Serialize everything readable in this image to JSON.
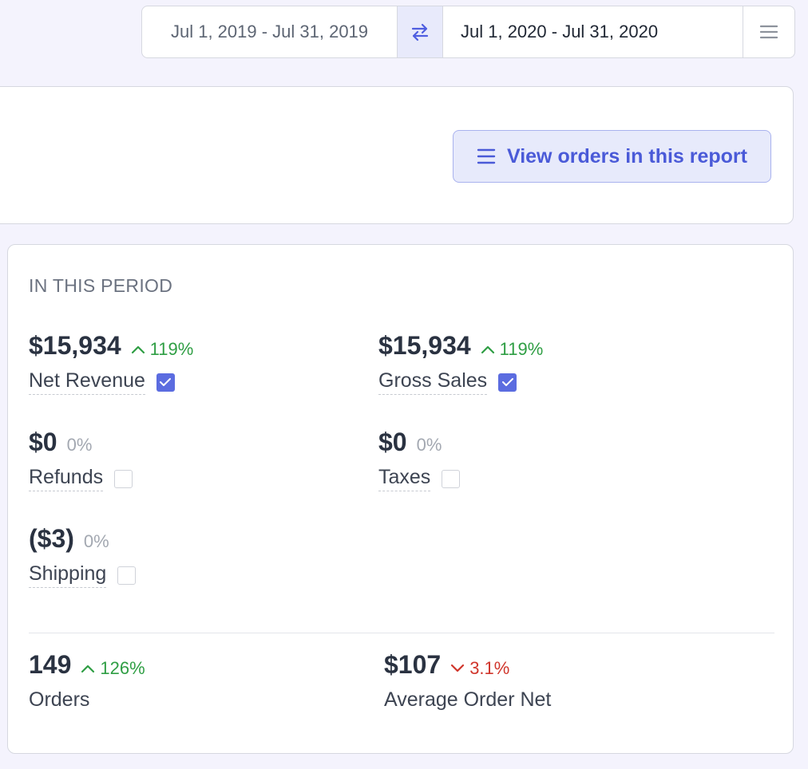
{
  "date_range": {
    "previous": "Jul 1, 2019 - Jul 31, 2019",
    "current": "Jul 1, 2020 - Jul 31, 2020"
  },
  "top_card": {
    "view_orders_label": "View orders in this report"
  },
  "stats": {
    "section_title": "IN THIS PERIOD",
    "net_revenue": {
      "value": "$15,934",
      "change": "119%",
      "label": "Net Revenue",
      "checked": true
    },
    "gross_sales": {
      "value": "$15,934",
      "change": "119%",
      "label": "Gross Sales",
      "checked": true
    },
    "refunds": {
      "value": "$0",
      "change": "0%",
      "label": "Refunds",
      "checked": false
    },
    "taxes": {
      "value": "$0",
      "change": "0%",
      "label": "Taxes",
      "checked": false
    },
    "shipping": {
      "value": "($3)",
      "change": "0%",
      "label": "Shipping",
      "checked": false
    },
    "orders": {
      "value": "149",
      "change": "126%",
      "label": "Orders"
    },
    "avg_order_net": {
      "value": "$107",
      "change": "3.1%",
      "label": "Average Order Net"
    }
  },
  "colors": {
    "accent": "#5b6ce0",
    "up": "#2f9e44",
    "down": "#d0352b",
    "flat": "#a3a8b1"
  },
  "icons": {
    "swap": "swap-arrows-icon",
    "menu": "hamburger-menu-icon",
    "list": "list-icon",
    "up": "chevron-up-icon",
    "down": "chevron-down-icon",
    "check": "checkmark-icon"
  }
}
